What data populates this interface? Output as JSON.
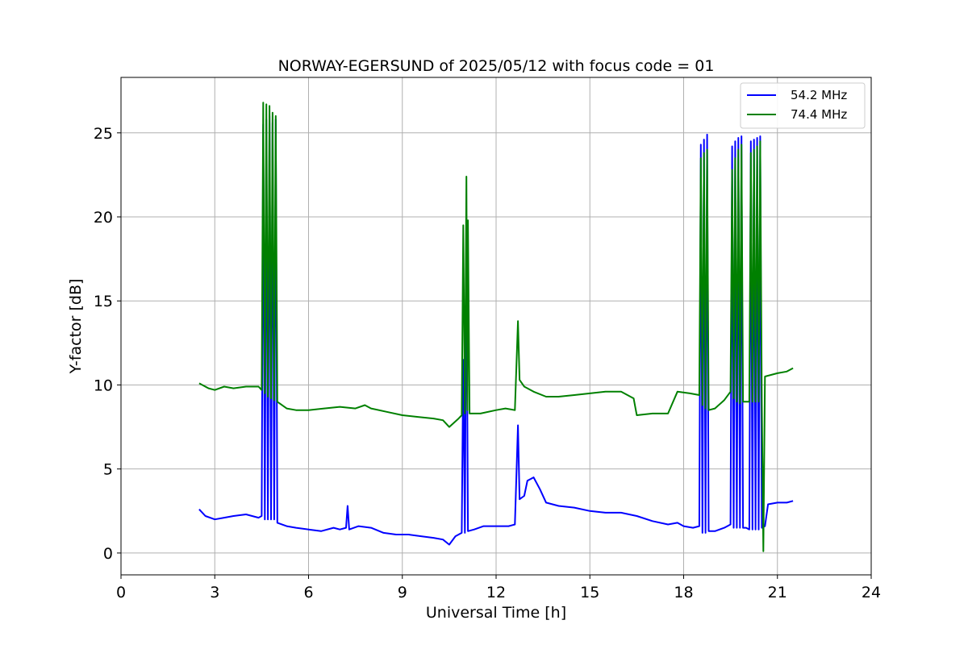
{
  "chart_data": {
    "type": "line",
    "title": "NORWAY-EGERSUND of 2025/05/12 with focus code = 01",
    "xlabel": "Universal Time [h]",
    "ylabel": "Y-factor [dB]",
    "xlim": [
      0,
      24
    ],
    "ylim": [
      -1.3,
      28.3
    ],
    "xticks": [
      0,
      3,
      6,
      9,
      12,
      15,
      18,
      21,
      24
    ],
    "yticks": [
      0,
      5,
      10,
      15,
      20,
      25
    ],
    "grid": true,
    "legend_position": "top-right",
    "series": [
      {
        "name": "54.2 MHz",
        "color": "#0000ff",
        "points": [
          [
            2.5,
            2.6
          ],
          [
            2.7,
            2.2
          ],
          [
            3.0,
            2.0
          ],
          [
            3.3,
            2.1
          ],
          [
            3.6,
            2.2
          ],
          [
            4.0,
            2.3
          ],
          [
            4.4,
            2.1
          ],
          [
            4.5,
            2.2
          ],
          [
            4.55,
            25.5
          ],
          [
            4.6,
            2.0
          ],
          [
            4.65,
            25.8
          ],
          [
            4.7,
            2.0
          ],
          [
            4.75,
            26.0
          ],
          [
            4.8,
            2.0
          ],
          [
            4.85,
            25.6
          ],
          [
            4.9,
            2.0
          ],
          [
            4.95,
            25.8
          ],
          [
            5.0,
            1.8
          ],
          [
            5.3,
            1.6
          ],
          [
            5.6,
            1.5
          ],
          [
            6.0,
            1.4
          ],
          [
            6.4,
            1.3
          ],
          [
            6.8,
            1.5
          ],
          [
            7.0,
            1.4
          ],
          [
            7.2,
            1.5
          ],
          [
            7.25,
            2.8
          ],
          [
            7.3,
            1.4
          ],
          [
            7.6,
            1.6
          ],
          [
            8.0,
            1.5
          ],
          [
            8.4,
            1.2
          ],
          [
            8.8,
            1.1
          ],
          [
            9.2,
            1.1
          ],
          [
            9.6,
            1.0
          ],
          [
            10.0,
            0.9
          ],
          [
            10.3,
            0.8
          ],
          [
            10.5,
            0.5
          ],
          [
            10.7,
            1.0
          ],
          [
            10.9,
            1.2
          ],
          [
            10.95,
            11.5
          ],
          [
            11.0,
            1.2
          ],
          [
            11.05,
            19.0
          ],
          [
            11.1,
            1.3
          ],
          [
            11.3,
            1.4
          ],
          [
            11.6,
            1.6
          ],
          [
            12.0,
            1.6
          ],
          [
            12.4,
            1.6
          ],
          [
            12.6,
            1.7
          ],
          [
            12.7,
            7.6
          ],
          [
            12.75,
            3.2
          ],
          [
            12.9,
            3.4
          ],
          [
            13.0,
            4.3
          ],
          [
            13.2,
            4.5
          ],
          [
            13.4,
            3.8
          ],
          [
            13.6,
            3.0
          ],
          [
            14.0,
            2.8
          ],
          [
            14.5,
            2.7
          ],
          [
            15.0,
            2.5
          ],
          [
            15.5,
            2.4
          ],
          [
            16.0,
            2.4
          ],
          [
            16.5,
            2.2
          ],
          [
            17.0,
            1.9
          ],
          [
            17.5,
            1.7
          ],
          [
            17.8,
            1.8
          ],
          [
            18.0,
            1.6
          ],
          [
            18.3,
            1.5
          ],
          [
            18.5,
            1.6
          ],
          [
            18.55,
            24.3
          ],
          [
            18.6,
            1.2
          ],
          [
            18.65,
            24.6
          ],
          [
            18.7,
            1.2
          ],
          [
            18.75,
            24.9
          ],
          [
            18.8,
            1.3
          ],
          [
            19.0,
            1.3
          ],
          [
            19.3,
            1.5
          ],
          [
            19.5,
            1.7
          ],
          [
            19.55,
            24.2
          ],
          [
            19.6,
            1.5
          ],
          [
            19.65,
            24.5
          ],
          [
            19.7,
            1.5
          ],
          [
            19.75,
            24.7
          ],
          [
            19.8,
            1.5
          ],
          [
            19.85,
            24.8
          ],
          [
            19.9,
            1.5
          ],
          [
            20.0,
            1.5
          ],
          [
            20.1,
            1.4
          ],
          [
            20.15,
            24.5
          ],
          [
            20.2,
            1.4
          ],
          [
            20.25,
            24.6
          ],
          [
            20.3,
            1.4
          ],
          [
            20.35,
            24.7
          ],
          [
            20.4,
            1.4
          ],
          [
            20.45,
            24.8
          ],
          [
            20.5,
            1.5
          ],
          [
            20.6,
            1.6
          ],
          [
            20.7,
            2.9
          ],
          [
            21.0,
            3.0
          ],
          [
            21.3,
            3.0
          ],
          [
            21.5,
            3.1
          ]
        ]
      },
      {
        "name": "74.4 MHz",
        "color": "#008000",
        "points": [
          [
            2.5,
            10.1
          ],
          [
            2.8,
            9.8
          ],
          [
            3.0,
            9.7
          ],
          [
            3.3,
            9.9
          ],
          [
            3.6,
            9.8
          ],
          [
            4.0,
            9.9
          ],
          [
            4.4,
            9.9
          ],
          [
            4.5,
            9.7
          ],
          [
            4.55,
            26.8
          ],
          [
            4.6,
            9.5
          ],
          [
            4.65,
            26.7
          ],
          [
            4.7,
            9.3
          ],
          [
            4.75,
            26.6
          ],
          [
            4.8,
            9.2
          ],
          [
            4.85,
            26.2
          ],
          [
            4.9,
            9.1
          ],
          [
            4.95,
            26.0
          ],
          [
            5.0,
            9.0
          ],
          [
            5.3,
            8.6
          ],
          [
            5.6,
            8.5
          ],
          [
            6.0,
            8.5
          ],
          [
            6.5,
            8.6
          ],
          [
            7.0,
            8.7
          ],
          [
            7.5,
            8.6
          ],
          [
            7.8,
            8.8
          ],
          [
            8.0,
            8.6
          ],
          [
            8.5,
            8.4
          ],
          [
            9.0,
            8.2
          ],
          [
            9.5,
            8.1
          ],
          [
            10.0,
            8.0
          ],
          [
            10.3,
            7.9
          ],
          [
            10.5,
            7.5
          ],
          [
            10.8,
            8.0
          ],
          [
            10.9,
            8.2
          ],
          [
            10.95,
            19.5
          ],
          [
            11.0,
            8.3
          ],
          [
            11.05,
            22.4
          ],
          [
            11.08,
            8.5
          ],
          [
            11.1,
            19.8
          ],
          [
            11.15,
            8.3
          ],
          [
            11.5,
            8.3
          ],
          [
            12.0,
            8.5
          ],
          [
            12.3,
            8.6
          ],
          [
            12.6,
            8.5
          ],
          [
            12.7,
            13.8
          ],
          [
            12.75,
            10.3
          ],
          [
            12.9,
            9.9
          ],
          [
            13.2,
            9.6
          ],
          [
            13.6,
            9.3
          ],
          [
            14.0,
            9.3
          ],
          [
            14.5,
            9.4
          ],
          [
            15.0,
            9.5
          ],
          [
            15.5,
            9.6
          ],
          [
            16.0,
            9.6
          ],
          [
            16.4,
            9.2
          ],
          [
            16.5,
            8.2
          ],
          [
            17.0,
            8.3
          ],
          [
            17.5,
            8.3
          ],
          [
            17.8,
            9.6
          ],
          [
            18.2,
            9.5
          ],
          [
            18.5,
            9.4
          ],
          [
            18.55,
            23.5
          ],
          [
            18.6,
            8.8
          ],
          [
            18.65,
            23.8
          ],
          [
            18.7,
            8.6
          ],
          [
            18.75,
            24.0
          ],
          [
            18.8,
            8.5
          ],
          [
            19.0,
            8.6
          ],
          [
            19.3,
            9.1
          ],
          [
            19.5,
            9.6
          ],
          [
            19.55,
            22.8
          ],
          [
            19.6,
            9.2
          ],
          [
            19.65,
            23.5
          ],
          [
            19.7,
            9.0
          ],
          [
            19.75,
            24.0
          ],
          [
            19.8,
            8.9
          ],
          [
            19.85,
            24.3
          ],
          [
            19.9,
            9.0
          ],
          [
            20.0,
            9.0
          ],
          [
            20.1,
            9.0
          ],
          [
            20.15,
            23.8
          ],
          [
            20.2,
            9.0
          ],
          [
            20.25,
            24.0
          ],
          [
            20.3,
            9.0
          ],
          [
            20.35,
            24.2
          ],
          [
            20.4,
            9.0
          ],
          [
            20.45,
            24.5
          ],
          [
            20.5,
            8.9
          ],
          [
            20.55,
            0.1
          ],
          [
            20.6,
            10.5
          ],
          [
            21.0,
            10.7
          ],
          [
            21.3,
            10.8
          ],
          [
            21.5,
            11.0
          ]
        ]
      }
    ]
  }
}
